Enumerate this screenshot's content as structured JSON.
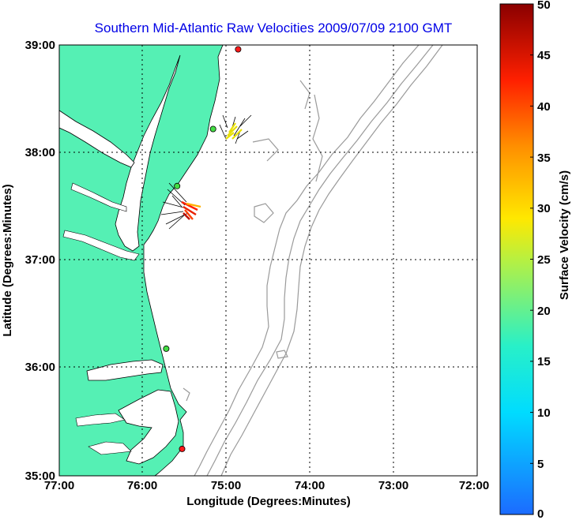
{
  "title": "Southern Mid-Atlantic Raw Velocities 2009/07/09 2100 GMT",
  "xlabel": "Longitude (Degrees:Minutes)",
  "ylabel": "Latitude (Degrees:Minutes)",
  "x_ticks": [
    "77:00",
    "76:00",
    "75:00",
    "74:00",
    "73:00",
    "72:00"
  ],
  "y_ticks": [
    "39:00",
    "38:00",
    "37:00",
    "36:00",
    "35:00"
  ],
  "colorbar": {
    "label": "Surface Velocity (cm/s)",
    "ticks": [
      "50",
      "45",
      "40",
      "35",
      "30",
      "25",
      "20",
      "15",
      "10",
      "5",
      "0"
    ],
    "range": [
      0,
      50
    ]
  },
  "colors": {
    "land": "#55f0b4",
    "title": "#0000e6",
    "contour": "#9a9a9a",
    "coast": "#000000"
  },
  "chart_data": {
    "type": "map",
    "title": "Southern Mid-Atlantic Raw Velocities 2009/07/09 2100 GMT",
    "xlabel": "Longitude (Degrees:Minutes)",
    "ylabel": "Latitude (Degrees:Minutes)",
    "xlim": [
      -77,
      -72
    ],
    "ylim": [
      35,
      39
    ],
    "grid": true,
    "stations": [
      {
        "lon": -74.86,
        "lat": 38.96,
        "color": "#ff1a1a"
      },
      {
        "lon": -75.16,
        "lat": 38.22,
        "color": "#44dd44"
      },
      {
        "lon": -75.59,
        "lat": 37.69,
        "color": "#44dd44"
      },
      {
        "lon": -75.72,
        "lat": 36.18,
        "color": "#44dd44"
      },
      {
        "lon": -75.53,
        "lat": 35.25,
        "color": "#ff1a1a"
      }
    ]
  }
}
